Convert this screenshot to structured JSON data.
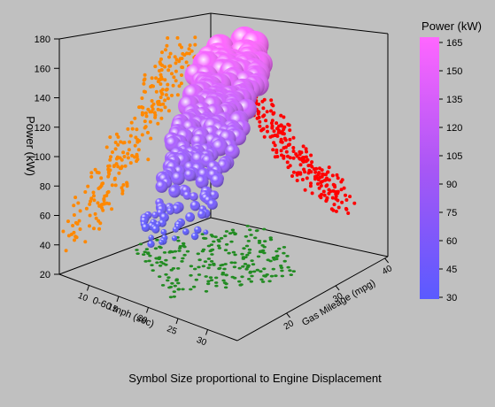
{
  "chart_data": {
    "type": "scatter",
    "subtitle": "Symbol Size proportional to Engine Displacement",
    "zlabel": "Power (kW)",
    "xlabel": "0-60 mph (sec)",
    "ylabel": "Gas Mileage (mpg)",
    "zlim": [
      20,
      180
    ],
    "xlim": [
      5,
      30
    ],
    "ylim": [
      10,
      40
    ],
    "z_ticks": [
      "20",
      "40",
      "60",
      "80",
      "100",
      "120",
      "140",
      "160",
      "180"
    ],
    "x_ticks": [
      "10",
      "15",
      "20",
      "25",
      "30"
    ],
    "y_ticks": [
      "20",
      "30",
      "40"
    ],
    "colorbar": {
      "title": "Power (kW)",
      "ticks": [
        "165",
        "150",
        "135",
        "120",
        "105",
        "90",
        "75",
        "60",
        "45",
        "30"
      ],
      "low_color": "#5a5aff",
      "high_color": "#ff66ff"
    },
    "projection_colors": {
      "power_vs_accel": "#ff8800",
      "power_vs_mileage": "#ff0000",
      "accel_vs_mileage": "#228b22"
    },
    "bubbles_sample": [
      {
        "accel": 6.5,
        "mpg": 17,
        "power": 170,
        "disp": 6.0
      },
      {
        "accel": 7.0,
        "mpg": 18,
        "power": 160,
        "disp": 5.5
      },
      {
        "accel": 7.5,
        "mpg": 16,
        "power": 150,
        "disp": 5.7
      },
      {
        "accel": 8.0,
        "mpg": 19,
        "power": 140,
        "disp": 5.0
      },
      {
        "accel": 8.5,
        "mpg": 18,
        "power": 130,
        "disp": 4.6
      },
      {
        "accel": 9.0,
        "mpg": 20,
        "power": 120,
        "disp": 4.2
      },
      {
        "accel": 9.5,
        "mpg": 21,
        "power": 115,
        "disp": 3.8
      },
      {
        "accel": 10.0,
        "mpg": 22,
        "power": 105,
        "disp": 3.5
      },
      {
        "accel": 10.5,
        "mpg": 24,
        "power": 98,
        "disp": 3.0
      },
      {
        "accel": 11.0,
        "mpg": 25,
        "power": 92,
        "disp": 2.8
      },
      {
        "accel": 11.5,
        "mpg": 26,
        "power": 85,
        "disp": 2.4
      },
      {
        "accel": 12.0,
        "mpg": 27,
        "power": 80,
        "disp": 2.2
      },
      {
        "accel": 12.5,
        "mpg": 28,
        "power": 75,
        "disp": 2.0
      },
      {
        "accel": 13.0,
        "mpg": 29,
        "power": 70,
        "disp": 1.9
      },
      {
        "accel": 14.0,
        "mpg": 30,
        "power": 66,
        "disp": 1.8
      },
      {
        "accel": 15.0,
        "mpg": 31,
        "power": 60,
        "disp": 1.6
      },
      {
        "accel": 16.0,
        "mpg": 32,
        "power": 55,
        "disp": 1.5
      },
      {
        "accel": 17.0,
        "mpg": 33,
        "power": 50,
        "disp": 1.4
      },
      {
        "accel": 18.0,
        "mpg": 34,
        "power": 45,
        "disp": 1.3
      }
    ]
  }
}
